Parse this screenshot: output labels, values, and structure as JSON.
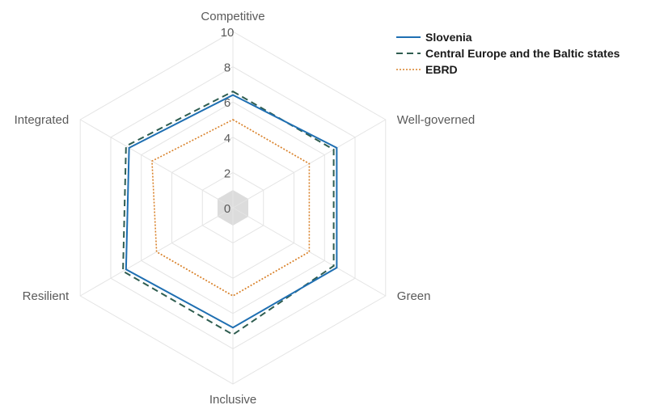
{
  "chart_data": {
    "type": "radar",
    "axes": [
      "Competitive",
      "Well-governed",
      "Green",
      "Inclusive",
      "Resilient",
      "Integrated"
    ],
    "ticks": [
      "0",
      "2",
      "4",
      "6",
      "8",
      "10"
    ],
    "rlim": [
      0,
      10
    ],
    "series": [
      {
        "name": "Slovenia",
        "values": [
          6.4,
          6.8,
          6.8,
          6.8,
          7.0,
          6.8
        ],
        "color": "#1f6fb2",
        "style": "solid"
      },
      {
        "name": "Central Europe and the Baltic states",
        "values": [
          6.6,
          6.6,
          6.6,
          7.2,
          7.2,
          7.0
        ],
        "color": "#2f5d50",
        "style": "dashed"
      },
      {
        "name": "EBRD",
        "values": [
          5.0,
          5.0,
          5.0,
          5.0,
          5.0,
          5.3
        ],
        "color": "#d9822b",
        "style": "dotted"
      }
    ],
    "legend_position": "top-right",
    "center_marker": true
  }
}
